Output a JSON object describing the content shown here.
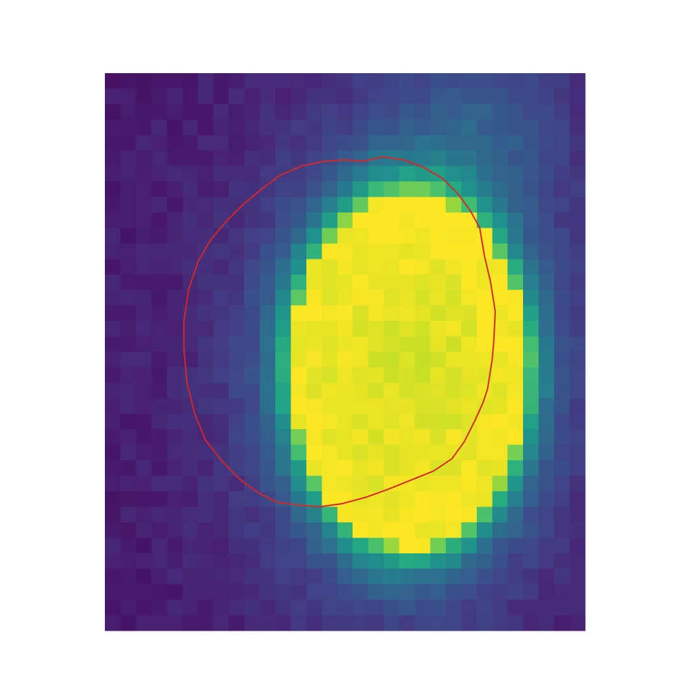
{
  "chart_data": {
    "type": "heatmap",
    "title": "",
    "xlabel": "",
    "ylabel": "",
    "axes_visible": false,
    "grid": false,
    "legend": "none",
    "colormap": "viridis",
    "value_range": [
      0,
      1
    ],
    "grid_shape": {
      "rows": 36,
      "cols": 31
    },
    "field": {
      "background": 0.07,
      "spot_center": {
        "col": 19.6,
        "row": 19.2
      },
      "spot_radius": {
        "col": 7.6,
        "row": 11.4
      },
      "spot_plateau": 0.93,
      "edge_sharpness": 1.6,
      "glow_amplitude": 0.25,
      "glow_scale": 1.9,
      "right_glow": {
        "col": 24,
        "row": 3,
        "amplitude": 0.14,
        "radius": 6
      },
      "noise_amplitude": 0.03
    },
    "contour": {
      "color": "#d62728",
      "level": 0.5,
      "points": [
        [
          16.7,
          5.7
        ],
        [
          17.9,
          5.4
        ],
        [
          19.3,
          5.6
        ],
        [
          20.6,
          6.1
        ],
        [
          21.8,
          6.8
        ],
        [
          22.8,
          7.8
        ],
        [
          23.6,
          8.9
        ],
        [
          24.2,
          10.0
        ],
        [
          24.5,
          11.8
        ],
        [
          24.9,
          13.5
        ],
        [
          25.2,
          15.4
        ],
        [
          25.1,
          17.4
        ],
        [
          25.0,
          18.5
        ],
        [
          24.7,
          20.4
        ],
        [
          24.4,
          21.3
        ],
        [
          23.9,
          22.4
        ],
        [
          23.2,
          23.8
        ],
        [
          22.4,
          24.9
        ],
        [
          21.2,
          25.7
        ],
        [
          19.7,
          26.3
        ],
        [
          18.2,
          26.9
        ],
        [
          16.8,
          27.4
        ],
        [
          15.3,
          27.8
        ],
        [
          13.9,
          28.0
        ],
        [
          12.6,
          27.9
        ],
        [
          11.1,
          27.7
        ],
        [
          9.9,
          27.1
        ],
        [
          8.8,
          26.3
        ],
        [
          7.6,
          25.1
        ],
        [
          6.5,
          23.7
        ],
        [
          5.8,
          22.0
        ],
        [
          5.3,
          20.0
        ],
        [
          5.1,
          17.8
        ],
        [
          5.1,
          16.0
        ],
        [
          5.4,
          14.0
        ],
        [
          6.0,
          12.2
        ],
        [
          6.8,
          10.8
        ],
        [
          7.8,
          9.6
        ],
        [
          8.9,
          8.5
        ],
        [
          10.1,
          7.5
        ],
        [
          11.3,
          6.6
        ],
        [
          12.7,
          6.0
        ],
        [
          14.1,
          5.7
        ],
        [
          15.5,
          5.6
        ],
        [
          16.7,
          5.7
        ]
      ]
    }
  }
}
